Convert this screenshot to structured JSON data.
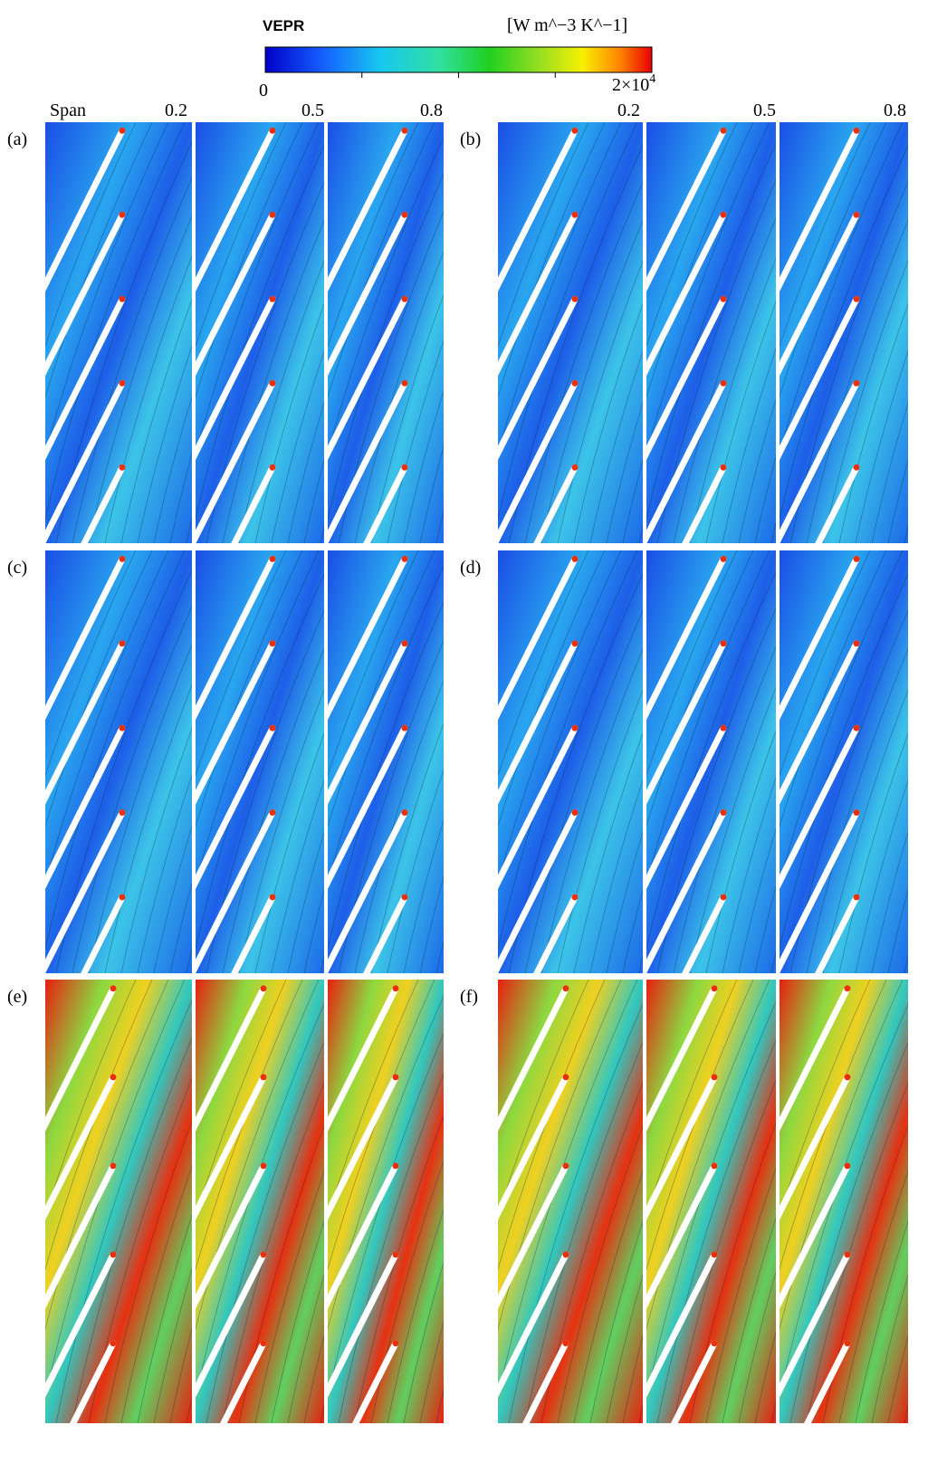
{
  "colorbar": {
    "title": "VEPR",
    "unit": "[W m^−3 K^−1]",
    "min_label": "0",
    "max_label": "2×10",
    "max_exponent": "4"
  },
  "span_label": "Span",
  "left_spans": [
    "0.2",
    "0.5",
    "0.8"
  ],
  "right_spans": [
    "0.2",
    "0.5",
    "0.8"
  ],
  "panels": [
    "(a)",
    "(b)",
    "(c)",
    "(d)",
    "(e)",
    "(f)"
  ]
}
